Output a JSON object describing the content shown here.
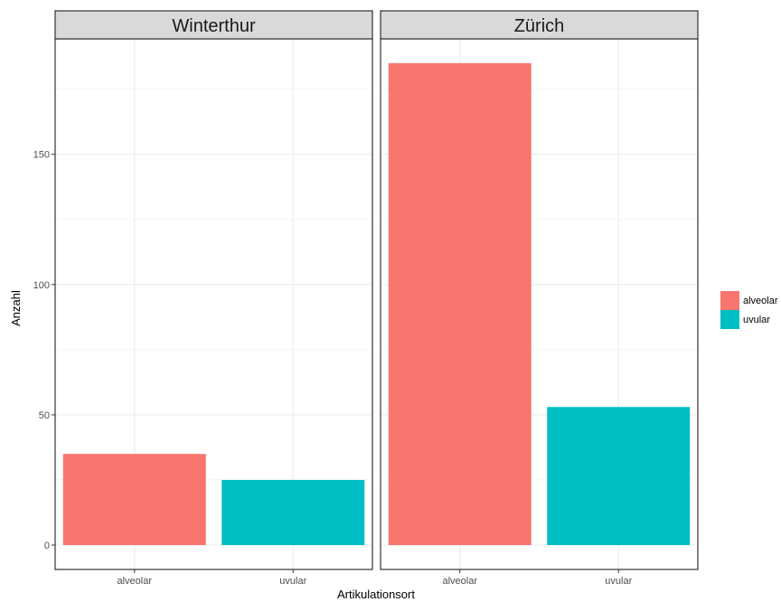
{
  "chart_data": {
    "type": "bar",
    "facets": [
      "Winterthur",
      "Zürich"
    ],
    "categories": [
      "alveolar",
      "uvular"
    ],
    "values": {
      "Winterthur": [
        35,
        25
      ],
      "Zürich": [
        185,
        53
      ]
    },
    "xlabel": "Artikulationsort",
    "ylabel": "Anzahl",
    "ylim": [
      0,
      190
    ],
    "yticks": [
      0,
      50,
      100,
      150
    ],
    "grid": true,
    "legend": {
      "position": "right",
      "entries": [
        "alveolar",
        "uvular"
      ]
    },
    "colors": {
      "alveolar": "#F8766D",
      "uvular": "#00BFC4"
    }
  }
}
